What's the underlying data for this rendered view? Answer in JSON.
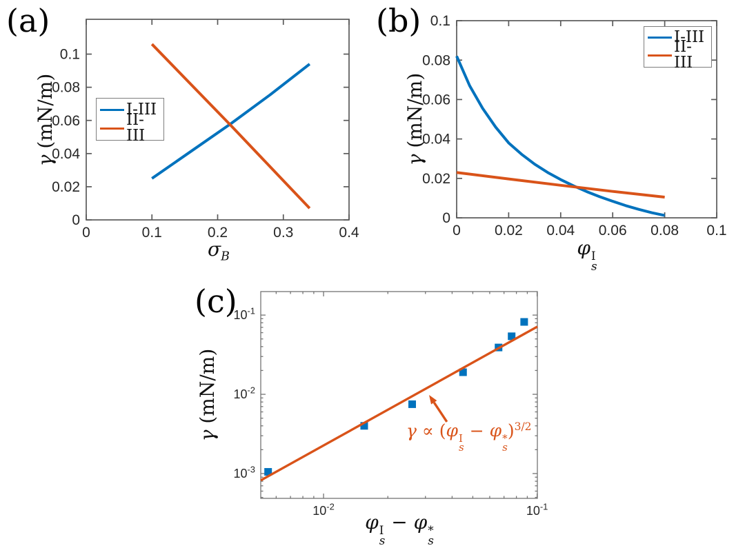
{
  "figure": {
    "background": "#ffffff",
    "colors": {
      "series_blue": "#0072BD",
      "series_orange": "#D95319",
      "axis_frame": "#595959",
      "axis_frame_c": "#737373",
      "tick_text": "#262626",
      "annotation": "#D95319"
    }
  },
  "panels": {
    "a": {
      "label": "(a)"
    },
    "b": {
      "label": "(b)"
    },
    "c": {
      "label": "(c)"
    }
  },
  "labels": {
    "a_y": [
      {
        "kind": "it",
        "text": "γ"
      },
      {
        "kind": "t",
        "text": " (mN/m)"
      }
    ],
    "a_x": [
      {
        "kind": "it",
        "text": "σ"
      },
      {
        "kind": "sub",
        "text": "B"
      }
    ],
    "b_y": [
      {
        "kind": "it",
        "text": "γ"
      },
      {
        "kind": "t",
        "text": " (mN/m)"
      }
    ],
    "b_x": [
      {
        "kind": "stack",
        "base": "φ",
        "sup": "I",
        "sub": "s"
      }
    ],
    "c_y": [
      {
        "kind": "it",
        "text": "γ"
      },
      {
        "kind": "t",
        "text": " (mN/m)"
      }
    ],
    "c_x": [
      {
        "kind": "stack",
        "base": "φ",
        "sup": "I",
        "sub": "s"
      },
      {
        "kind": "t",
        "text": " − "
      },
      {
        "kind": "stack",
        "base": "φ",
        "sup": "*",
        "sub": "s"
      }
    ]
  },
  "legend_a": {
    "entries": [
      {
        "label": "I-III",
        "color": "#0072BD"
      },
      {
        "label": "II-III",
        "color": "#D95319"
      }
    ]
  },
  "legend_b": {
    "entries": [
      {
        "label": "I-III",
        "color": "#0072BD"
      },
      {
        "label": "II-III",
        "color": "#D95319"
      }
    ]
  },
  "annotation_c": {
    "color": "#D95319",
    "tokens": [
      {
        "kind": "it",
        "text": "γ"
      },
      {
        "kind": "t",
        "text": " ∝ ("
      },
      {
        "kind": "stack",
        "base": "φ",
        "sup": "I",
        "sub": "s"
      },
      {
        "kind": "t",
        "text": " − "
      },
      {
        "kind": "stack",
        "base": "φ",
        "sup": "*",
        "sub": "s"
      },
      {
        "kind": "t",
        "text": ")"
      },
      {
        "kind": "sup",
        "text": "3/2"
      }
    ]
  },
  "chart_data": [
    {
      "id": "a",
      "type": "line",
      "title": "",
      "xlabel": "σ_B",
      "ylabel": "γ (mN/m)",
      "xscale": "linear",
      "yscale": "linear",
      "xlim": [
        0,
        0.4
      ],
      "ylim": [
        0,
        0.121
      ],
      "grid": false,
      "legend_position": "left-center",
      "xticks": [
        0,
        0.1,
        0.2,
        0.3,
        0.4
      ],
      "xticklabels": [
        "0",
        "0.1",
        "0.2",
        "0.3",
        "0.4"
      ],
      "yticks": [
        0,
        0.02,
        0.04,
        0.06,
        0.08,
        0.1
      ],
      "yticklabels": [
        "0",
        "0.02",
        "0.04",
        "0.06",
        "0.08",
        "0.1"
      ],
      "series": [
        {
          "name": "I-III",
          "style": "line",
          "color": "#0072BD",
          "x": [
            0.1,
            0.16,
            0.22,
            0.28,
            0.34
          ],
          "y": [
            0.025,
            0.0415,
            0.058,
            0.0755,
            0.094
          ]
        },
        {
          "name": "II-III",
          "style": "line",
          "color": "#D95319",
          "x": [
            0.1,
            0.16,
            0.22,
            0.28,
            0.34
          ],
          "y": [
            0.106,
            0.0815,
            0.057,
            0.032,
            0.007
          ]
        }
      ]
    },
    {
      "id": "b",
      "type": "line",
      "title": "",
      "xlabel": "φ_s^I",
      "ylabel": "γ (mN/m)",
      "xscale": "linear",
      "yscale": "linear",
      "xlim": [
        0,
        0.1
      ],
      "ylim": [
        0,
        0.1
      ],
      "grid": false,
      "legend_position": "top-right",
      "xticks": [
        0,
        0.02,
        0.04,
        0.06,
        0.08,
        0.1
      ],
      "xticklabels": [
        "0",
        "0.02",
        "0.04",
        "0.06",
        "0.08",
        "0.1"
      ],
      "yticks": [
        0,
        0.02,
        0.04,
        0.06,
        0.08,
        0.1
      ],
      "yticklabels": [
        "0",
        "0.02",
        "0.04",
        "0.06",
        "0.08",
        "0.1"
      ],
      "series": [
        {
          "name": "I-III",
          "style": "line",
          "color": "#0072BD",
          "x": [
            0,
            0.005,
            0.01,
            0.015,
            0.02,
            0.025,
            0.03,
            0.035,
            0.04,
            0.045,
            0.05,
            0.055,
            0.06,
            0.065,
            0.07,
            0.075,
            0.08
          ],
          "y": [
            0.082,
            0.067,
            0.0555,
            0.046,
            0.038,
            0.0322,
            0.0272,
            0.023,
            0.0194,
            0.0162,
            0.0133,
            0.0107,
            0.0084,
            0.0062,
            0.0043,
            0.0026,
            0.0012
          ]
        },
        {
          "name": "II-III",
          "style": "line",
          "color": "#D95319",
          "x": [
            0,
            0.02,
            0.04,
            0.06,
            0.08
          ],
          "y": [
            0.023,
            0.0197,
            0.0165,
            0.0134,
            0.0105
          ]
        }
      ]
    },
    {
      "id": "c",
      "type": "scatter",
      "title": "",
      "xlabel": "φ_s^I − φ_s^*",
      "ylabel": "γ (mN/m)",
      "xscale": "log",
      "yscale": "log",
      "xlim": [
        0.00508,
        0.1003
      ],
      "ylim": [
        0.000486,
        0.198
      ],
      "grid": false,
      "minor_ticks": true,
      "xticks": [
        0.01,
        0.1
      ],
      "xticklabels": [
        "10^-2",
        "10^-1"
      ],
      "yticks": [
        0.001,
        0.01,
        0.1
      ],
      "yticklabels": [
        "10^-3",
        "10^-2",
        "10^-1"
      ],
      "series": [
        {
          "name": "data points",
          "style": "scatter",
          "marker": "square",
          "color": "#0072BD",
          "x": [
            0.0055,
            0.0155,
            0.026,
            0.045,
            0.066,
            0.076,
            0.087
          ],
          "y": [
            0.00105,
            0.004,
            0.0075,
            0.019,
            0.039,
            0.054,
            0.082
          ]
        },
        {
          "name": "power-law fit gamma ∝ (phi_s^I − phi_s^*)^(3/2)",
          "style": "line",
          "color": "#D95319",
          "x": [
            0.00508,
            0.1003
          ],
          "y": [
            0.00082,
            0.0715
          ]
        }
      ],
      "arrow": {
        "from_x": 0.0378,
        "from_y": 0.0045,
        "to_x": 0.0312,
        "to_y": 0.0098,
        "color": "#D95319"
      }
    }
  ]
}
